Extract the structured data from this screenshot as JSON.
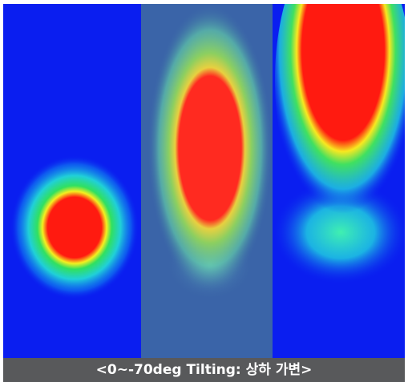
{
  "caption": "<0~-70deg Tilting: 상하 가변>"
}
